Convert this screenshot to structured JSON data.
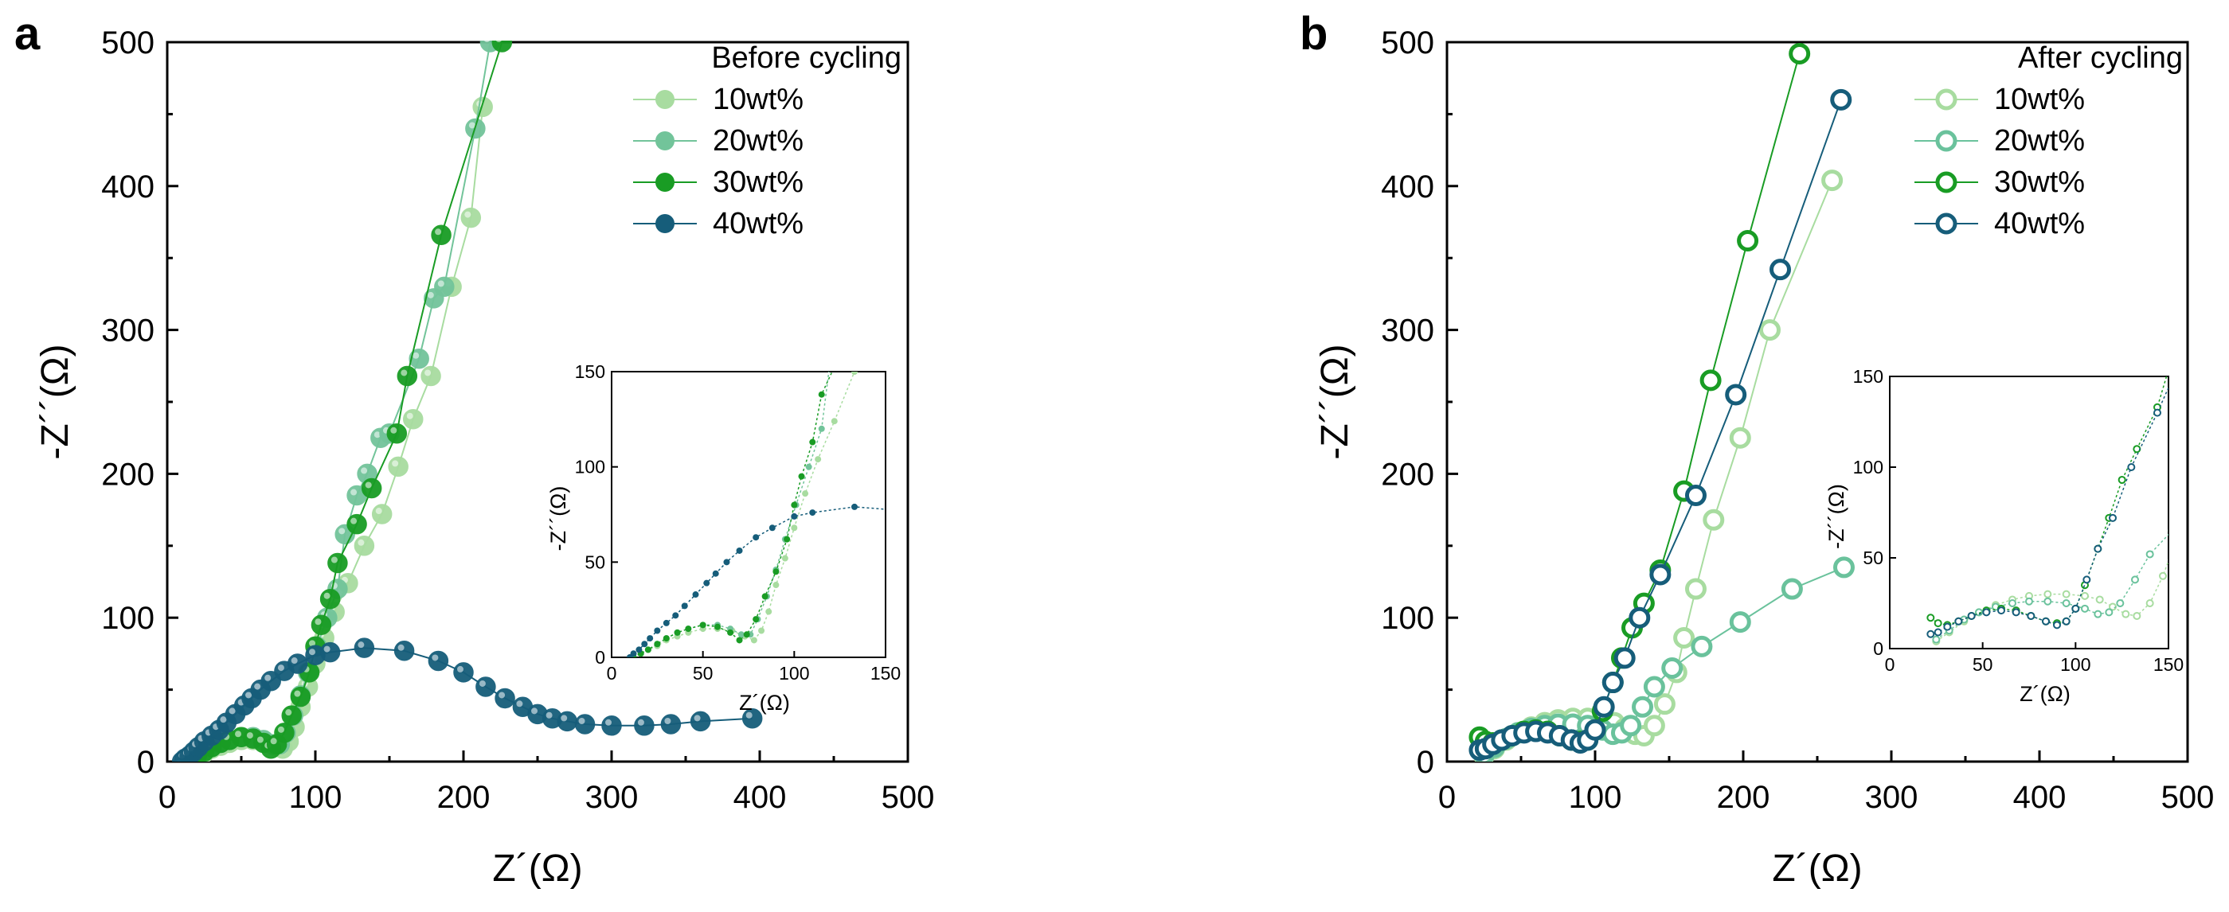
{
  "chart_data": [
    {
      "panel": "a",
      "type": "scatter",
      "legend_title": "Before cycling",
      "marker_style": "filled",
      "xlabel": "Z´(Ω)",
      "ylabel": "-Z´´(Ω)",
      "xlim": [
        0,
        500
      ],
      "ylim": [
        0,
        500
      ],
      "xticks": [
        "0",
        "100",
        "200",
        "300",
        "400",
        "500"
      ],
      "yticks": [
        "0",
        "100",
        "200",
        "300",
        "400",
        "500"
      ],
      "legend_position": "top-right",
      "series": [
        {
          "name": "10wt%",
          "color": "#a8dca0",
          "points": [
            [
              12,
              0
            ],
            [
              16,
              2
            ],
            [
              20,
              4
            ],
            [
              25,
              6
            ],
            [
              30,
              9
            ],
            [
              36,
              11
            ],
            [
              42,
              13
            ],
            [
              50,
              15
            ],
            [
              58,
              15
            ],
            [
              66,
              14
            ],
            [
              73,
              11
            ],
            [
              78,
              9
            ],
            [
              82,
              14
            ],
            [
              86,
              24
            ],
            [
              90,
              38
            ],
            [
              95,
              52
            ],
            [
              100,
              68
            ],
            [
              106,
              86
            ],
            [
              113,
              104
            ],
            [
              122,
              124
            ],
            [
              133,
              150
            ],
            [
              145,
              172
            ],
            [
              156,
              205
            ],
            [
              166,
              238
            ],
            [
              178,
              268
            ],
            [
              192,
              330
            ],
            [
              205,
              378
            ],
            [
              213,
              455
            ]
          ]
        },
        {
          "name": "20wt%",
          "color": "#72c49a",
          "points": [
            [
              12,
              0
            ],
            [
              16,
              2
            ],
            [
              20,
              4
            ],
            [
              25,
              7
            ],
            [
              30,
              10
            ],
            [
              36,
              13
            ],
            [
              42,
              15
            ],
            [
              50,
              17
            ],
            [
              58,
              17
            ],
            [
              65,
              15
            ],
            [
              71,
              12
            ],
            [
              76,
              12
            ],
            [
              80,
              20
            ],
            [
              85,
              32
            ],
            [
              90,
              46
            ],
            [
              95,
              62
            ],
            [
              101,
              80
            ],
            [
              108,
              100
            ],
            [
              115,
              120
            ],
            [
              120,
              158
            ],
            [
              128,
              185
            ],
            [
              135,
              200
            ],
            [
              144,
              225
            ],
            [
              150,
              228
            ],
            [
              170,
              280
            ],
            [
              180,
              322
            ],
            [
              187,
              330
            ],
            [
              208,
              440
            ],
            [
              218,
              500
            ]
          ]
        },
        {
          "name": "30wt%",
          "color": "#199c24",
          "points": [
            [
              12,
              0
            ],
            [
              16,
              2
            ],
            [
              20,
              4
            ],
            [
              25,
              7
            ],
            [
              30,
              10
            ],
            [
              36,
              13
            ],
            [
              42,
              15
            ],
            [
              50,
              17
            ],
            [
              58,
              16
            ],
            [
              65,
              13
            ],
            [
              70,
              9
            ],
            [
              74,
              12
            ],
            [
              79,
              20
            ],
            [
              84,
              32
            ],
            [
              90,
              45
            ],
            [
              96,
              62
            ],
            [
              100,
              80
            ],
            [
              104,
              95
            ],
            [
              110,
              113
            ],
            [
              115,
              138
            ],
            [
              128,
              165
            ],
            [
              138,
              190
            ],
            [
              155,
              228
            ],
            [
              162,
              268
            ],
            [
              185,
              366
            ],
            [
              226,
              500
            ]
          ]
        },
        {
          "name": "40wt%",
          "color": "#165d7a",
          "points": [
            [
              10,
              0
            ],
            [
              12,
              2
            ],
            [
              15,
              4
            ],
            [
              18,
              7
            ],
            [
              21,
              10
            ],
            [
              25,
              14
            ],
            [
              30,
              18
            ],
            [
              35,
              22
            ],
            [
              40,
              27
            ],
            [
              46,
              33
            ],
            [
              52,
              39
            ],
            [
              57,
              44
            ],
            [
              63,
              50
            ],
            [
              70,
              56
            ],
            [
              79,
              63
            ],
            [
              88,
              68
            ],
            [
              100,
              74
            ],
            [
              110,
              76
            ],
            [
              133,
              79
            ],
            [
              160,
              77
            ],
            [
              183,
              70
            ],
            [
              200,
              62
            ],
            [
              215,
              52
            ],
            [
              228,
              44
            ],
            [
              240,
              38
            ],
            [
              250,
              33
            ],
            [
              260,
              30
            ],
            [
              270,
              28
            ],
            [
              282,
              26
            ],
            [
              300,
              25
            ],
            [
              322,
              25
            ],
            [
              340,
              26
            ],
            [
              360,
              28
            ],
            [
              395,
              30
            ]
          ]
        }
      ],
      "inset": {
        "xlim": [
          0,
          150
        ],
        "ylim": [
          0,
          150
        ],
        "xticks": [
          "0",
          "50",
          "100",
          "150"
        ],
        "yticks": [
          "0",
          "50",
          "100",
          "150"
        ],
        "xlabel": "Z´(Ω)",
        "ylabel": "-Z´´(Ω)"
      }
    },
    {
      "panel": "b",
      "type": "scatter",
      "legend_title": "After cycling",
      "marker_style": "hollow",
      "xlabel": "Z´(Ω)",
      "ylabel": "-Z´´(Ω)",
      "xlim": [
        0,
        500
      ],
      "ylim": [
        0,
        500
      ],
      "xticks": [
        "0",
        "100",
        "200",
        "300",
        "400",
        "500"
      ],
      "yticks": [
        "0",
        "100",
        "200",
        "300",
        "400",
        "500"
      ],
      "legend_position": "top-right",
      "series": [
        {
          "name": "10wt%",
          "color": "#a8dca0",
          "points": [
            [
              25,
              4
            ],
            [
              32,
              9
            ],
            [
              40,
              15
            ],
            [
              48,
              20
            ],
            [
              57,
              24
            ],
            [
              66,
              27
            ],
            [
              75,
              29
            ],
            [
              85,
              30
            ],
            [
              95,
              30
            ],
            [
              105,
              29
            ],
            [
              113,
              27
            ],
            [
              120,
              23
            ],
            [
              127,
              19
            ],
            [
              133,
              18
            ],
            [
              140,
              25
            ],
            [
              147,
              40
            ],
            [
              155,
              62
            ],
            [
              160,
              86
            ],
            [
              168,
              120
            ],
            [
              180,
              168
            ],
            [
              198,
              225
            ],
            [
              218,
              300
            ],
            [
              260,
              404
            ]
          ]
        },
        {
          "name": "20wt%",
          "color": "#6ac29c",
          "points": [
            [
              25,
              5
            ],
            [
              32,
              10
            ],
            [
              40,
              16
            ],
            [
              48,
              20
            ],
            [
              57,
              23
            ],
            [
              66,
              25
            ],
            [
              75,
              26
            ],
            [
              85,
              26
            ],
            [
              95,
              25
            ],
            [
              105,
              22
            ],
            [
              112,
              19
            ],
            [
              118,
              20
            ],
            [
              124,
              25
            ],
            [
              132,
              38
            ],
            [
              140,
              52
            ],
            [
              152,
              65
            ],
            [
              172,
              80
            ],
            [
              198,
              97
            ],
            [
              233,
              120
            ],
            [
              268,
              135
            ]
          ]
        },
        {
          "name": "30wt%",
          "color": "#199c24",
          "points": [
            [
              22,
              17
            ],
            [
              26,
              14
            ],
            [
              31,
              13
            ],
            [
              37,
              15
            ],
            [
              44,
              18
            ],
            [
              52,
              21
            ],
            [
              60,
              22
            ],
            [
              68,
              21
            ],
            [
              76,
              18
            ],
            [
              84,
              15
            ],
            [
              90,
              14
            ],
            [
              95,
              15
            ],
            [
              100,
              22
            ],
            [
              105,
              35
            ],
            [
              112,
              55
            ],
            [
              118,
              72
            ],
            [
              125,
              93
            ],
            [
              133,
              110
            ],
            [
              144,
              133
            ],
            [
              160,
              188
            ],
            [
              178,
              265
            ],
            [
              203,
              362
            ],
            [
              238,
              492
            ]
          ]
        },
        {
          "name": "40wt%",
          "color": "#165d7a",
          "points": [
            [
              22,
              8
            ],
            [
              26,
              9
            ],
            [
              31,
              12
            ],
            [
              37,
              15
            ],
            [
              44,
              18
            ],
            [
              52,
              20
            ],
            [
              60,
              21
            ],
            [
              68,
              20
            ],
            [
              76,
              18
            ],
            [
              84,
              15
            ],
            [
              90,
              13
            ],
            [
              95,
              15
            ],
            [
              100,
              22
            ],
            [
              106,
              38
            ],
            [
              112,
              55
            ],
            [
              120,
              72
            ],
            [
              130,
              100
            ],
            [
              144,
              130
            ],
            [
              168,
              185
            ],
            [
              195,
              255
            ],
            [
              225,
              342
            ],
            [
              266,
              460
            ]
          ]
        }
      ],
      "inset": {
        "xlim": [
          0,
          150
        ],
        "ylim": [
          0,
          150
        ],
        "xticks": [
          "0",
          "50",
          "100",
          "150"
        ],
        "yticks": [
          "0",
          "50",
          "100",
          "150"
        ],
        "xlabel": "Z´(Ω)",
        "ylabel": "-Z´´(Ω)"
      }
    }
  ]
}
